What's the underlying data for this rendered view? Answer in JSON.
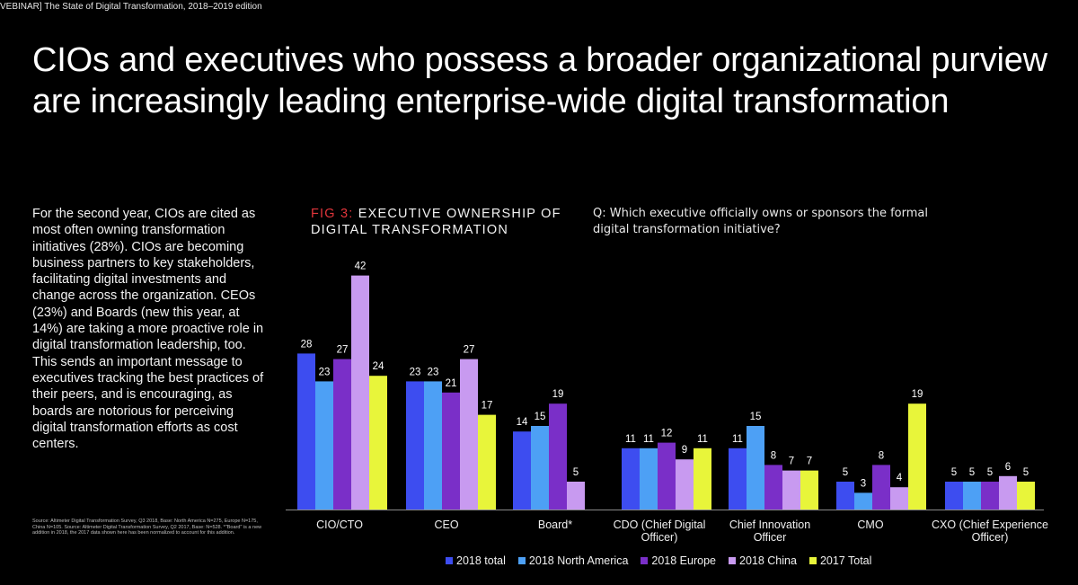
{
  "header": {
    "webinar_label": "VEBINAR] The State of Digital Transformation, 2018–2019 edition"
  },
  "slide": {
    "title": "CIOs and executives who possess a broader organizational purview are increasingly leading enterprise-wide digital transformation",
    "body": "For the second year, CIOs are cited as most often owning transformation initiatives (28%). CIOs are becoming business partners to key stakeholders, facilitating digital investments and change across the organization. CEOs (23%) and Boards (new this year, at 14%) are taking a more proactive role in digital transformation leadership, too. This sends an important message to executives tracking the best practices of their peers, and is encouraging, as boards are notorious for perceiving digital transformation efforts as cost centers.",
    "source": "Source: Altimeter Digital Transformation Survey, Q3 2018, Base: North America N=275, Europe N=175, China N=105. Source: Altimeter Digital Transformation Survey, Q2 2017, Base: N=528. *\"Board\" is a new addition in 2018, the 2017 data shown here has been normalized to account for this addition.",
    "fig_number": "FIG 3:",
    "fig_title": "EXECUTIVE OWNERSHIP OF DIGITAL TRANSFORMATION",
    "question": "Q: Which executive officially owns or sponsors the formal digital transformation initiative?"
  },
  "chart_data": {
    "type": "bar",
    "title": "EXECUTIVE OWNERSHIP OF DIGITAL TRANSFORMATION",
    "categories": [
      "CIO/CTO",
      "CEO",
      "Board*",
      "CDO (Chief Digital Officer)",
      "Chief Innovation Officer",
      "CMO",
      "CXO (Chief Experience Officer)"
    ],
    "series": [
      {
        "name": "2018 total",
        "color": "#3d4df0",
        "values": [
          28,
          23,
          14,
          11,
          11,
          5,
          5
        ]
      },
      {
        "name": "2018 North America",
        "color": "#4da0f5",
        "values": [
          23,
          23,
          15,
          11,
          15,
          3,
          5
        ]
      },
      {
        "name": "2018 Europe",
        "color": "#7a2fc8",
        "values": [
          27,
          21,
          19,
          12,
          8,
          8,
          5
        ]
      },
      {
        "name": "2018 China",
        "color": "#c89af0",
        "values": [
          42,
          27,
          5,
          9,
          7,
          4,
          6
        ]
      },
      {
        "name": "2017 Total",
        "color": "#e8f53a",
        "values": [
          24,
          17,
          null,
          11,
          7,
          19,
          5
        ]
      }
    ],
    "ylim": [
      0,
      45
    ],
    "xlabel": "",
    "ylabel": "",
    "legend": "bottom",
    "grid": false
  }
}
